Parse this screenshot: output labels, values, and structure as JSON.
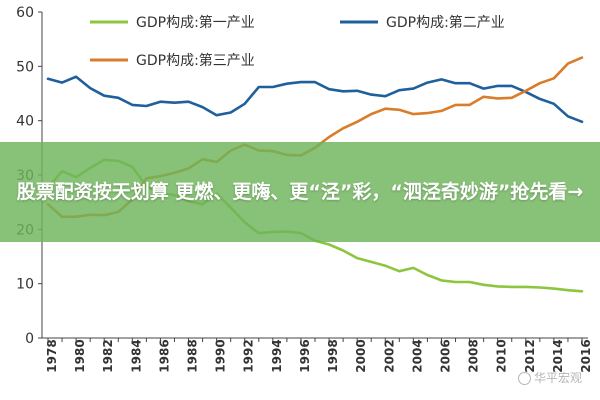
{
  "chart_data": {
    "type": "line",
    "title": "",
    "xlabel": "",
    "ylabel": "",
    "ylim": [
      0,
      60
    ],
    "yticks": [
      0,
      10,
      20,
      30,
      40,
      50,
      60
    ],
    "x": [
      1978,
      1979,
      1980,
      1981,
      1982,
      1983,
      1984,
      1985,
      1986,
      1987,
      1988,
      1989,
      1990,
      1991,
      1992,
      1993,
      1994,
      1995,
      1996,
      1997,
      1998,
      1999,
      2000,
      2001,
      2002,
      2003,
      2004,
      2005,
      2006,
      2007,
      2008,
      2009,
      2010,
      2011,
      2012,
      2013,
      2014,
      2015,
      2016
    ],
    "xtick_labels": [
      "1978",
      "1980",
      "1982",
      "1984",
      "1986",
      "1988",
      "1990",
      "1992",
      "1994",
      "1996",
      "1998",
      "2000",
      "2002",
      "2004",
      "2006",
      "2008",
      "2010",
      "2012",
      "2014",
      "2016"
    ],
    "grid": false,
    "legend_position": "top",
    "series": [
      {
        "name": "GDP构成:第一产业",
        "color": "#8cc63f",
        "values": [
          27.7,
          30.7,
          29.6,
          31.3,
          32.8,
          32.6,
          31.5,
          27.9,
          26.6,
          26.3,
          25.2,
          24.6,
          26.6,
          24.0,
          21.3,
          19.3,
          19.5,
          19.6,
          19.3,
          17.9,
          17.2,
          16.1,
          14.7,
          14.0,
          13.3,
          12.3,
          12.9,
          11.6,
          10.6,
          10.3,
          10.3,
          9.8,
          9.5,
          9.4,
          9.4,
          9.3,
          9.1,
          8.8,
          8.6
        ]
      },
      {
        "name": "GDP构成:第二产业",
        "color": "#1f5f9c",
        "values": [
          47.7,
          47.0,
          48.1,
          46.0,
          44.6,
          44.2,
          42.9,
          42.7,
          43.5,
          43.3,
          43.5,
          42.5,
          41.0,
          41.5,
          43.1,
          46.2,
          46.2,
          46.8,
          47.1,
          47.1,
          45.8,
          45.4,
          45.5,
          44.8,
          44.5,
          45.6,
          45.9,
          47.0,
          47.6,
          46.9,
          46.9,
          45.9,
          46.4,
          46.4,
          45.3,
          44.0,
          43.1,
          40.8,
          39.8
        ]
      },
      {
        "name": "GDP构成:第三产业",
        "color": "#d97d2b",
        "values": [
          24.6,
          22.3,
          22.3,
          22.7,
          22.6,
          23.2,
          25.5,
          29.4,
          29.8,
          30.4,
          31.2,
          32.9,
          32.4,
          34.5,
          35.6,
          34.5,
          34.4,
          33.7,
          33.6,
          35.0,
          37.0,
          38.6,
          39.8,
          41.2,
          42.2,
          42.0,
          41.2,
          41.4,
          41.8,
          42.9,
          42.9,
          44.4,
          44.1,
          44.2,
          45.5,
          46.9,
          47.8,
          50.5,
          51.6
        ]
      }
    ]
  },
  "banner": {
    "text": "股票配资按天划算 更燃、更嗨、更“泾”彩，“泗泾奇妙游”抢先看→"
  },
  "watermark": {
    "text": "华平宏观"
  }
}
